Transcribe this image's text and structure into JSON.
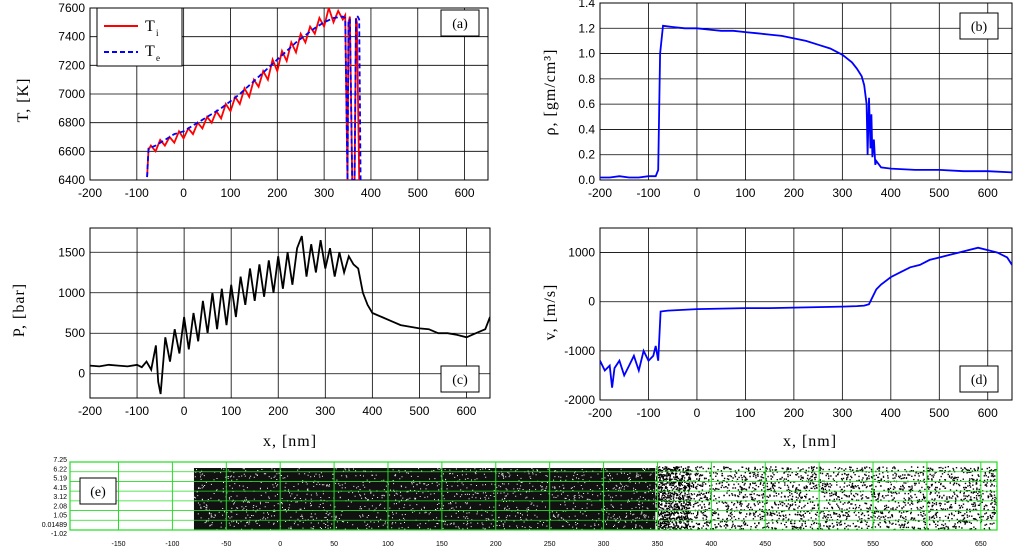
{
  "chart_data": [
    {
      "id": "a",
      "type": "line",
      "panel_label": "(a)",
      "ylabel": "T, [K]",
      "xlabel": "",
      "xlim": [
        -200,
        650
      ],
      "ylim": [
        6400,
        7600
      ],
      "xticks": [
        -200,
        -100,
        0,
        100,
        200,
        300,
        400,
        500,
        600
      ],
      "yticks": [
        6400,
        6600,
        6800,
        7000,
        7200,
        7400,
        7600
      ],
      "grid": true,
      "legend": {
        "placement": "top-left",
        "entries": [
          {
            "main": "T",
            "sub": "i",
            "color": "#ff0000",
            "dash": "solid"
          },
          {
            "main": "T",
            "sub": "e",
            "color": "#0000ff",
            "dash": "dashed"
          }
        ]
      },
      "series": [
        {
          "name": "T_i",
          "color": "#ff0000",
          "x": [
            -78,
            -75,
            -70,
            -60,
            -50,
            -40,
            -30,
            -20,
            -10,
            0,
            10,
            20,
            30,
            40,
            50,
            60,
            70,
            80,
            90,
            100,
            110,
            120,
            130,
            140,
            150,
            160,
            170,
            180,
            190,
            200,
            210,
            220,
            230,
            240,
            250,
            260,
            270,
            280,
            290,
            300,
            310,
            320,
            330,
            340,
            345,
            350,
            352,
            355,
            360,
            365,
            368,
            370,
            375
          ],
          "y": [
            6420,
            6610,
            6640,
            6600,
            6680,
            6640,
            6700,
            6660,
            6740,
            6690,
            6760,
            6720,
            6800,
            6760,
            6840,
            6800,
            6880,
            6830,
            6930,
            6880,
            6980,
            6930,
            7040,
            6980,
            7100,
            7050,
            7160,
            7100,
            7240,
            7160,
            7300,
            7230,
            7360,
            7290,
            7420,
            7360,
            7470,
            7420,
            7530,
            7470,
            7600,
            7500,
            7580,
            7520,
            7550,
            6400,
            7500,
            7540,
            6400,
            6400,
            7530,
            7500,
            6400
          ]
        },
        {
          "name": "T_e",
          "color": "#0000ff",
          "x": [
            -78,
            -75,
            -60,
            -40,
            -20,
            0,
            20,
            40,
            60,
            80,
            100,
            120,
            140,
            160,
            180,
            200,
            220,
            240,
            260,
            280,
            300,
            320,
            340,
            345,
            350,
            352,
            355,
            360,
            365,
            368,
            372,
            375,
            378
          ],
          "y": [
            6420,
            6620,
            6640,
            6680,
            6720,
            6740,
            6780,
            6820,
            6860,
            6900,
            6950,
            7000,
            7060,
            7120,
            7180,
            7240,
            7300,
            7360,
            7410,
            7460,
            7500,
            7530,
            7540,
            7530,
            6400,
            7520,
            7520,
            6400,
            6400,
            7540,
            7540,
            7520,
            6400
          ]
        }
      ]
    },
    {
      "id": "b",
      "type": "line",
      "panel_label": "(b)",
      "ylabel": "ρ, [gm/cm³]",
      "xlabel": "",
      "xlim": [
        -200,
        650
      ],
      "ylim": [
        0.0,
        1.4
      ],
      "xticks": [
        -200,
        -100,
        0,
        100,
        200,
        300,
        400,
        500,
        600
      ],
      "yticks": [
        "0.0",
        "0.2",
        "0.4",
        "0.6",
        "0.8",
        "1.0",
        "1.2",
        "1.4"
      ],
      "grid": true,
      "series": [
        {
          "name": "density",
          "color": "#0000ff",
          "x": [
            -200,
            -180,
            -160,
            -140,
            -120,
            -100,
            -85,
            -80,
            -76,
            -70,
            -50,
            -25,
            0,
            25,
            50,
            75,
            100,
            125,
            150,
            175,
            200,
            225,
            250,
            275,
            300,
            310,
            320,
            330,
            340,
            345,
            350,
            352,
            355,
            358,
            360,
            362,
            365,
            368,
            370,
            380,
            400,
            450,
            500,
            550,
            600,
            650
          ],
          "y": [
            0.02,
            0.02,
            0.03,
            0.02,
            0.02,
            0.03,
            0.03,
            0.08,
            1.0,
            1.22,
            1.21,
            1.2,
            1.2,
            1.19,
            1.18,
            1.18,
            1.17,
            1.16,
            1.15,
            1.14,
            1.12,
            1.1,
            1.07,
            1.04,
            0.99,
            0.96,
            0.93,
            0.88,
            0.82,
            0.75,
            0.6,
            0.2,
            0.65,
            0.25,
            0.52,
            0.18,
            0.32,
            0.12,
            0.15,
            0.1,
            0.09,
            0.08,
            0.08,
            0.07,
            0.07,
            0.06
          ]
        }
      ]
    },
    {
      "id": "c",
      "type": "line",
      "panel_label": "(c)",
      "ylabel": "P, [bar]",
      "xlabel": "x, [nm]",
      "xlim": [
        -200,
        650
      ],
      "ylim": [
        -300,
        1800
      ],
      "xticks": [
        -200,
        -100,
        0,
        100,
        200,
        300,
        400,
        500,
        600
      ],
      "yticks": [
        0,
        500,
        1000,
        1500
      ],
      "grid": true,
      "series": [
        {
          "name": "pressure",
          "color": "#000000",
          "x": [
            -200,
            -180,
            -160,
            -140,
            -120,
            -100,
            -90,
            -80,
            -70,
            -60,
            -55,
            -50,
            -40,
            -30,
            -20,
            -10,
            0,
            10,
            20,
            30,
            40,
            50,
            60,
            70,
            80,
            90,
            100,
            110,
            120,
            130,
            140,
            150,
            160,
            170,
            180,
            190,
            200,
            210,
            220,
            230,
            240,
            250,
            260,
            270,
            280,
            290,
            300,
            310,
            320,
            330,
            340,
            350,
            360,
            370,
            380,
            390,
            400,
            420,
            440,
            460,
            480,
            500,
            520,
            540,
            560,
            580,
            600,
            620,
            640,
            650
          ],
          "y": [
            100,
            90,
            110,
            100,
            90,
            110,
            80,
            150,
            50,
            350,
            -100,
            -250,
            450,
            150,
            550,
            250,
            700,
            300,
            750,
            400,
            900,
            500,
            1000,
            550,
            1050,
            600,
            1100,
            700,
            1200,
            850,
            1300,
            900,
            1350,
            950,
            1400,
            1000,
            1450,
            1050,
            1500,
            1100,
            1550,
            1700,
            1200,
            1600,
            1250,
            1650,
            1300,
            1550,
            1200,
            1500,
            1250,
            1450,
            1350,
            1300,
            1000,
            850,
            750,
            700,
            650,
            600,
            580,
            560,
            550,
            500,
            500,
            480,
            450,
            500,
            550,
            700
          ]
        }
      ]
    },
    {
      "id": "d",
      "type": "line",
      "panel_label": "(d)",
      "ylabel": "v, [m/s]",
      "xlabel": "x, [nm]",
      "xlim": [
        -200,
        650
      ],
      "ylim": [
        -2000,
        1500
      ],
      "xticks": [
        -200,
        -100,
        0,
        100,
        200,
        300,
        400,
        500,
        600
      ],
      "yticks": [
        -2000,
        -1000,
        0,
        1000
      ],
      "grid": true,
      "series": [
        {
          "name": "velocity",
          "color": "#0000ff",
          "x": [
            -200,
            -190,
            -180,
            -175,
            -170,
            -160,
            -150,
            -140,
            -130,
            -120,
            -110,
            -100,
            -90,
            -85,
            -80,
            -75,
            -60,
            -40,
            -20,
            0,
            50,
            100,
            150,
            200,
            250,
            300,
            330,
            345,
            355,
            360,
            370,
            380,
            400,
            420,
            440,
            460,
            480,
            500,
            520,
            540,
            560,
            580,
            600,
            620,
            640,
            650
          ],
          "y": [
            -1200,
            -1400,
            -1300,
            -1750,
            -1350,
            -1200,
            -1500,
            -1300,
            -1100,
            -1400,
            -1000,
            -1200,
            -1100,
            -900,
            -1200,
            -200,
            -180,
            -170,
            -160,
            -150,
            -140,
            -130,
            -130,
            -120,
            -110,
            -100,
            -90,
            -80,
            -50,
            50,
            250,
            350,
            500,
            600,
            700,
            750,
            850,
            900,
            950,
            1000,
            1050,
            1100,
            1050,
            1000,
            900,
            750
          ]
        }
      ]
    },
    {
      "id": "e",
      "type": "scatter",
      "panel_label": "(e)",
      "xlim": [
        -195,
        665
      ],
      "ylim": [
        -1.02,
        7.25
      ],
      "xticks": [
        -150,
        -100,
        -50,
        0,
        50,
        100,
        150,
        200,
        250,
        300,
        350,
        400,
        450,
        500,
        550,
        600,
        650
      ],
      "yticks": [
        "7.25",
        "6.22",
        "5.19",
        "4.15",
        "3.12",
        "2.08",
        "1.05",
        "0.01489",
        "-1.02"
      ],
      "grid": true,
      "regions": [
        {
          "x_range": [
            -80,
            348
          ],
          "density": "dense"
        },
        {
          "x_range": [
            348,
            380
          ],
          "density": "medium"
        },
        {
          "x_range": [
            380,
            665
          ],
          "density": "sparse"
        }
      ]
    }
  ]
}
